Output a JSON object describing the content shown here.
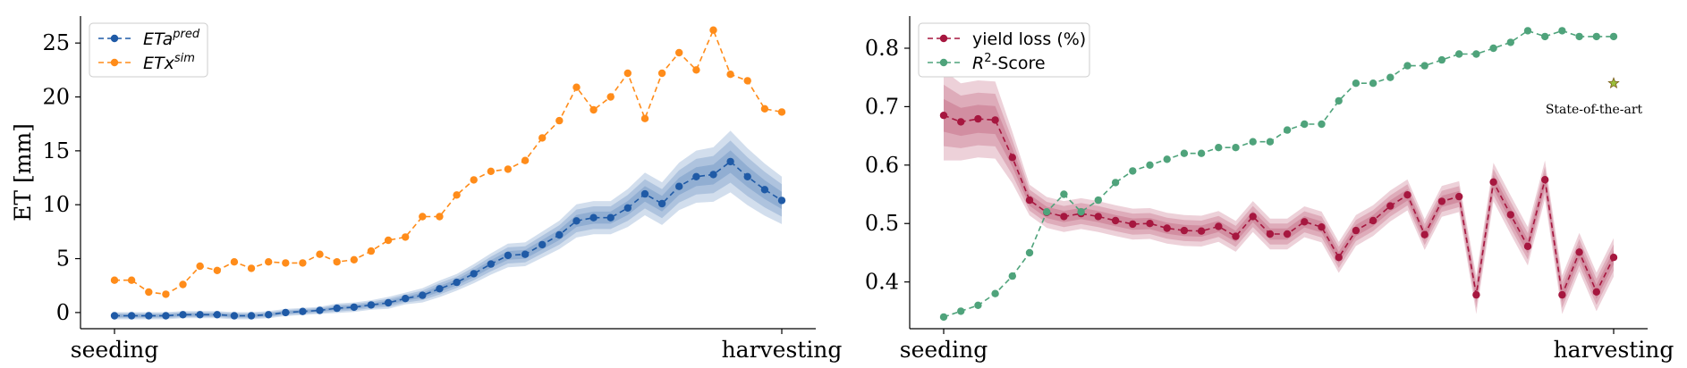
{
  "chart_data": [
    {
      "type": "line",
      "ylabel": "ET [mm]",
      "xlabel": "",
      "x_tick_labels": [
        "seeding",
        "harvesting"
      ],
      "ylim": [
        -1.5,
        27.5
      ],
      "yticks": [
        0,
        5,
        10,
        15,
        20,
        25
      ],
      "grid": false,
      "legend_position": "top-left",
      "x": [
        0,
        1,
        2,
        3,
        4,
        5,
        6,
        7,
        8,
        9,
        10,
        11,
        12,
        13,
        14,
        15,
        16,
        17,
        18,
        19,
        20,
        21,
        22,
        23,
        24,
        25,
        26,
        27,
        28,
        29,
        30,
        31,
        32,
        33,
        34,
        35,
        36,
        37,
        38,
        39
      ],
      "series": [
        {
          "name": "ETa",
          "name_sup": "pred",
          "color": "#1f5aa6",
          "style": "dashed-marker",
          "band": true,
          "values": [
            -0.3,
            -0.3,
            -0.3,
            -0.3,
            -0.2,
            -0.2,
            -0.2,
            -0.3,
            -0.3,
            -0.2,
            0.0,
            0.1,
            0.2,
            0.4,
            0.5,
            0.7,
            0.9,
            1.3,
            1.6,
            2.2,
            2.8,
            3.6,
            4.5,
            5.3,
            5.4,
            6.3,
            7.2,
            8.5,
            8.8,
            8.8,
            9.7,
            11.0,
            10.1,
            11.7,
            12.6,
            12.8,
            14.0,
            12.6,
            11.4,
            10.4
          ],
          "band_width": [
            0.15,
            0.15,
            0.15,
            0.15,
            0.15,
            0.15,
            0.15,
            0.15,
            0.15,
            0.15,
            0.15,
            0.15,
            0.15,
            0.2,
            0.2,
            0.2,
            0.25,
            0.25,
            0.3,
            0.35,
            0.35,
            0.4,
            0.45,
            0.5,
            0.5,
            0.55,
            0.6,
            0.7,
            0.7,
            0.7,
            0.8,
            0.9,
            0.9,
            1.0,
            1.1,
            1.15,
            1.3,
            1.2,
            1.1,
            1.0
          ]
        },
        {
          "name": "ETx",
          "name_sup": "sim",
          "color": "#ff8c1a",
          "style": "dashed-marker",
          "band": false,
          "values": [
            3.0,
            3.0,
            1.9,
            1.7,
            2.6,
            4.3,
            3.9,
            4.7,
            4.1,
            4.7,
            4.6,
            4.6,
            5.4,
            4.7,
            4.9,
            5.7,
            6.7,
            7.0,
            8.9,
            8.9,
            10.9,
            12.3,
            13.1,
            13.3,
            14.1,
            16.2,
            17.8,
            20.9,
            18.8,
            20.0,
            22.2,
            18.0,
            22.2,
            24.1,
            22.5,
            26.2,
            22.1,
            21.5,
            18.9,
            18.6
          ]
        }
      ]
    },
    {
      "type": "line",
      "ylabel": "",
      "xlabel": "",
      "x_tick_labels": [
        "seeding",
        "harvesting"
      ],
      "ylim": [
        0.32,
        0.855
      ],
      "yticks": [
        0.4,
        0.5,
        0.6,
        0.7,
        0.8
      ],
      "grid": false,
      "legend_position": "top-left",
      "x": [
        0,
        1,
        2,
        3,
        4,
        5,
        6,
        7,
        8,
        9,
        10,
        11,
        12,
        13,
        14,
        15,
        16,
        17,
        18,
        19,
        20,
        21,
        22,
        23,
        24,
        25,
        26,
        27,
        28,
        29,
        30,
        31,
        32,
        33,
        34,
        35,
        36,
        37,
        38,
        39
      ],
      "series": [
        {
          "name": "yield loss (%)",
          "color": "#a6173f",
          "style": "dashed-marker",
          "band": true,
          "values": [
            0.685,
            0.674,
            0.679,
            0.677,
            0.613,
            0.54,
            0.519,
            0.512,
            0.517,
            0.512,
            0.505,
            0.499,
            0.5,
            0.492,
            0.488,
            0.487,
            0.495,
            0.478,
            0.512,
            0.482,
            0.482,
            0.503,
            0.494,
            0.442,
            0.488,
            0.505,
            0.53,
            0.549,
            0.481,
            0.538,
            0.546,
            0.378,
            0.571,
            0.515,
            0.461,
            0.575,
            0.378,
            0.451,
            0.383,
            0.442
          ],
          "band_width": [
            0.035,
            0.03,
            0.03,
            0.03,
            0.02,
            0.012,
            0.012,
            0.012,
            0.012,
            0.012,
            0.012,
            0.012,
            0.012,
            0.012,
            0.012,
            0.012,
            0.012,
            0.012,
            0.012,
            0.012,
            0.012,
            0.012,
            0.012,
            0.012,
            0.012,
            0.012,
            0.012,
            0.012,
            0.012,
            0.012,
            0.012,
            0.015,
            0.015,
            0.015,
            0.015,
            0.015,
            0.015,
            0.015,
            0.015,
            0.015
          ]
        },
        {
          "name": "R",
          "name_sup": "2",
          "name_suffix": "-Score",
          "color": "#4fa37b",
          "style": "dashed-marker",
          "band": false,
          "values": [
            0.34,
            0.35,
            0.36,
            0.38,
            0.41,
            0.45,
            0.52,
            0.55,
            0.52,
            0.54,
            0.57,
            0.59,
            0.6,
            0.61,
            0.62,
            0.62,
            0.63,
            0.63,
            0.64,
            0.64,
            0.66,
            0.67,
            0.67,
            0.71,
            0.74,
            0.74,
            0.75,
            0.77,
            0.77,
            0.78,
            0.79,
            0.79,
            0.8,
            0.81,
            0.83,
            0.82,
            0.83,
            0.82,
            0.82,
            0.82
          ]
        }
      ],
      "annotation": {
        "text": "State-of-the-art",
        "x": 39,
        "y": 0.74,
        "marker": "star",
        "marker_color": "#9bbf3b"
      }
    }
  ]
}
